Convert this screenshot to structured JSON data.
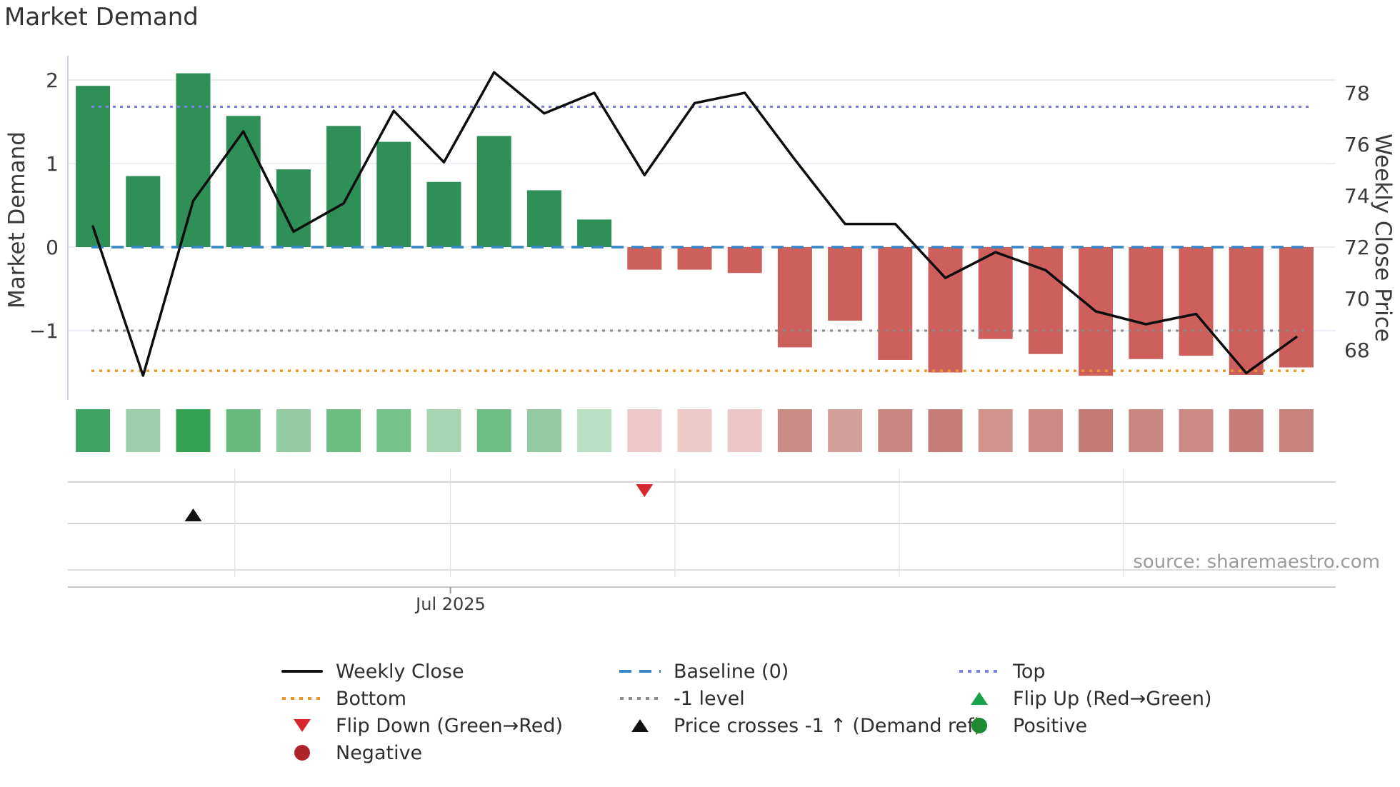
{
  "page": {
    "title": "Market Demand",
    "source": "source: sharemaestro.com"
  },
  "chart_data": {
    "type": "bar+line combo with heat strip and event markers",
    "title": "Market Demand",
    "xlabel": "",
    "x_tick_label": "Jul 2025",
    "x_tick_week": 7.63,
    "month_gridline_weeks": [
      3.33,
      7.63,
      12.11,
      16.58,
      21.05
    ],
    "left_axis": {
      "label": "Market Demand",
      "tick_labels": [
        "2",
        "1",
        "0",
        "−1"
      ],
      "tick_values": [
        2,
        1,
        0,
        -1
      ],
      "ylim": [
        -1.8,
        2.28
      ]
    },
    "right_axis": {
      "label": "Weekly Close Price",
      "tick_labels": [
        "78",
        "76",
        "74",
        "72",
        "70",
        "68"
      ],
      "tick_values": [
        78,
        76,
        74,
        72,
        70,
        68
      ],
      "ylim": [
        66.1,
        79.4
      ]
    },
    "weeks": 25,
    "series": [
      {
        "name": "Market Demand",
        "type": "bar",
        "axis": "left",
        "values": [
          1.93,
          0.85,
          2.08,
          1.57,
          0.93,
          1.45,
          1.26,
          0.78,
          1.33,
          0.68,
          0.33,
          -0.27,
          -0.27,
          -0.31,
          -1.2,
          -0.88,
          -1.35,
          -1.5,
          -1.1,
          -1.28,
          -1.54,
          -1.34,
          -1.3,
          -1.53,
          -1.44
        ],
        "positive_color": "#2e8f57",
        "negative_color": "#cd5f5c"
      },
      {
        "name": "Weekly Close",
        "type": "line",
        "axis": "right",
        "color": "#0d0d0d",
        "values": [
          72.8,
          67.0,
          73.8,
          76.5,
          72.6,
          73.7,
          77.3,
          75.3,
          78.8,
          77.2,
          78.0,
          74.8,
          77.6,
          78.0,
          75.4,
          72.9,
          72.9,
          70.8,
          71.8,
          71.1,
          69.5,
          69.0,
          69.4,
          67.1,
          68.5
        ]
      }
    ],
    "ref_lines": [
      {
        "name": "Top",
        "demand_level": 1.68,
        "color": "#7b7fdd",
        "style": "dotted"
      },
      {
        "name": "Baseline (0)",
        "demand_level": 0,
        "color": "#3a87c8",
        "style": "dashed"
      },
      {
        "name": "-1 level",
        "demand_level": -1,
        "color": "#8a8a8a",
        "style": "dotted"
      },
      {
        "name": "Bottom",
        "demand_level": -1.48,
        "color": "#f0941f",
        "style": "dotted"
      }
    ],
    "heat_strip_colors": [
      "#3fa463",
      "#9ccfa9",
      "#35a254",
      "#67b97e",
      "#92cba1",
      "#6cbc82",
      "#74c189",
      "#a5d4b0",
      "#6fbe85",
      "#92c9a0",
      "#b9e0c2",
      "#edcac8",
      "#eccac8",
      "#ecc7c5",
      "#cb8b85",
      "#d49e99",
      "#c98680",
      "#c67d77",
      "#d1928d",
      "#cc8a84",
      "#c57b75",
      "#ca8781",
      "#cc8a84",
      "#c67d77",
      "#c8827c"
    ],
    "markers": [
      {
        "name": "flip-down",
        "week": 12,
        "row": "flip",
        "shape": "triangle-down",
        "color": "#d7282f"
      },
      {
        "name": "price-crosses-minus1-up",
        "week": 3,
        "row": "cross",
        "shape": "triangle-up",
        "color": "#111111"
      }
    ],
    "grid": "horizontal light gridlines at left-axis ticks; monthly vertical gridlines in marker panel",
    "legend_position": "bottom, 3 columns"
  },
  "legend": {
    "columns": [
      {
        "items": [
          {
            "label": "Weekly Close",
            "swatch": "line-solid",
            "color": "#111111"
          },
          {
            "label": "Bottom",
            "swatch": "dotted",
            "color": "#f0941f"
          },
          {
            "label": "Flip Down (Green→Red)",
            "swatch": "triangle-down",
            "color": "#d7282f"
          },
          {
            "label": "Negative",
            "swatch": "circle",
            "color": "#b02328"
          }
        ]
      },
      {
        "items": [
          {
            "label": "Baseline (0)",
            "swatch": "dashed",
            "color": "#3a87c8"
          },
          {
            "label": "-1 level",
            "swatch": "dotted",
            "color": "#8a8a8a"
          },
          {
            "label": "Price crosses -1 ↑ (Demand ref)",
            "swatch": "triangle-up",
            "color": "#111111"
          }
        ]
      },
      {
        "items": [
          {
            "label": "Top",
            "swatch": "dotted",
            "color": "#7b7fdd"
          },
          {
            "label": "Flip Up (Red→Green)",
            "swatch": "triangle-up",
            "color": "#1aa14c"
          },
          {
            "label": "Positive",
            "swatch": "circle",
            "color": "#1e8b33"
          }
        ]
      }
    ]
  }
}
